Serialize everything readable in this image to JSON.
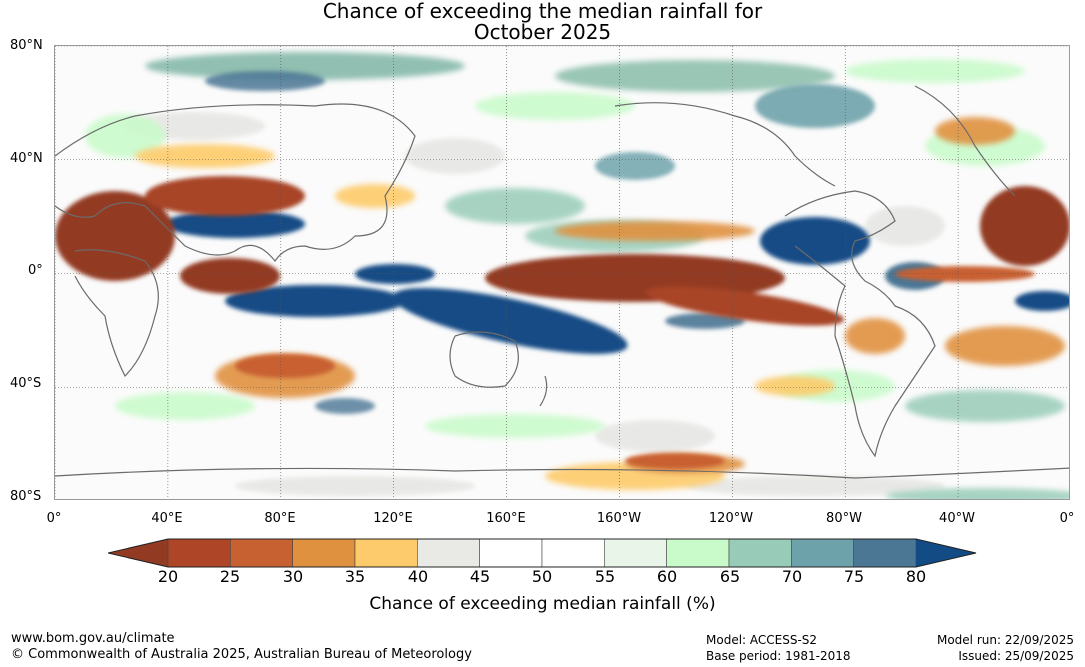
{
  "title": {
    "line1": "Chance of exceeding the median rainfall for",
    "line2": "October 2025"
  },
  "axes": {
    "lat_labels": [
      "80°N",
      "40°N",
      "0°",
      "40°S",
      "80°S"
    ],
    "lat_values": [
      80,
      40,
      0,
      -40,
      -80
    ],
    "lon_labels": [
      "0°",
      "40°E",
      "80°E",
      "120°E",
      "160°E",
      "160°W",
      "120°W",
      "80°W",
      "40°W",
      "0°"
    ],
    "lon_values": [
      0,
      40,
      80,
      120,
      160,
      200,
      240,
      280,
      320,
      360
    ]
  },
  "colorbar": {
    "label": "Chance of exceeding median rainfall (%)",
    "ticks": [
      "20",
      "25",
      "30",
      "35",
      "40",
      "45",
      "50",
      "55",
      "60",
      "65",
      "70",
      "75",
      "80"
    ],
    "low_extend_color": "#933a22",
    "high_extend_color": "#134b85",
    "bin_colors": [
      "#ad4526",
      "#c86132",
      "#e0913f",
      "#fdcb6b",
      "#e9e9e6",
      "#ffffff",
      "#ffffff",
      "#eaf5e9",
      "#c8fbc9",
      "#99ccb8",
      "#6ea2ab",
      "#4b7694"
    ]
  },
  "footer": {
    "website": "www.bom.gov.au/climate",
    "copyright": "© Commonwealth of Australia 2025, Australian Bureau of Meteorology",
    "model": "Model: ACCESS-S2",
    "base_period": "Base period: 1981-2018",
    "model_run": "Model run: 22/09/2025",
    "issued": "Issued: 25/09/2025"
  }
}
